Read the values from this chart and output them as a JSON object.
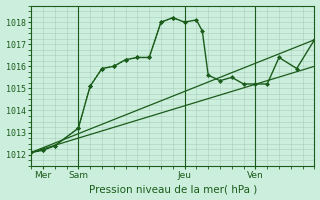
{
  "bg_color": "#cceedd",
  "grid_color": "#aaccbb",
  "line_color": "#1a5c1a",
  "title": "Pression niveau de la mer( hPa )",
  "ylim": [
    1011.5,
    1018.7
  ],
  "yticks": [
    1012,
    1013,
    1014,
    1015,
    1016,
    1017,
    1018
  ],
  "xlim": [
    0,
    96
  ],
  "xtick_positions": [
    4,
    16,
    52,
    76
  ],
  "xtick_labels": [
    "Mer",
    "Sam",
    "Jeu",
    "Ven"
  ],
  "vlines": [
    16,
    52,
    76
  ],
  "main_x": [
    0,
    4,
    8,
    16,
    20,
    24,
    28,
    32,
    36,
    40,
    44,
    48,
    52,
    56,
    58,
    60,
    64,
    68,
    72,
    76,
    80,
    84,
    90,
    96
  ],
  "main_y": [
    1012.1,
    1012.2,
    1012.4,
    1013.2,
    1015.1,
    1015.9,
    1016.0,
    1016.3,
    1016.4,
    1016.4,
    1018.0,
    1018.2,
    1018.0,
    1018.1,
    1017.6,
    1015.6,
    1015.35,
    1015.5,
    1015.2,
    1015.2,
    1015.2,
    1016.4,
    1015.9,
    1017.2
  ],
  "dotted_x": [
    0,
    4,
    8,
    16,
    20,
    24,
    28,
    32,
    36,
    40,
    44,
    48,
    52
  ],
  "dotted_y": [
    1012.1,
    1012.2,
    1012.4,
    1013.2,
    1015.1,
    1015.9,
    1016.0,
    1016.3,
    1016.4,
    1016.4,
    1018.0,
    1018.2,
    1018.0
  ],
  "line2_x": [
    0,
    96
  ],
  "line2_y": [
    1012.1,
    1017.2
  ],
  "line3_x": [
    0,
    96
  ],
  "line3_y": [
    1012.1,
    1016.0
  ]
}
